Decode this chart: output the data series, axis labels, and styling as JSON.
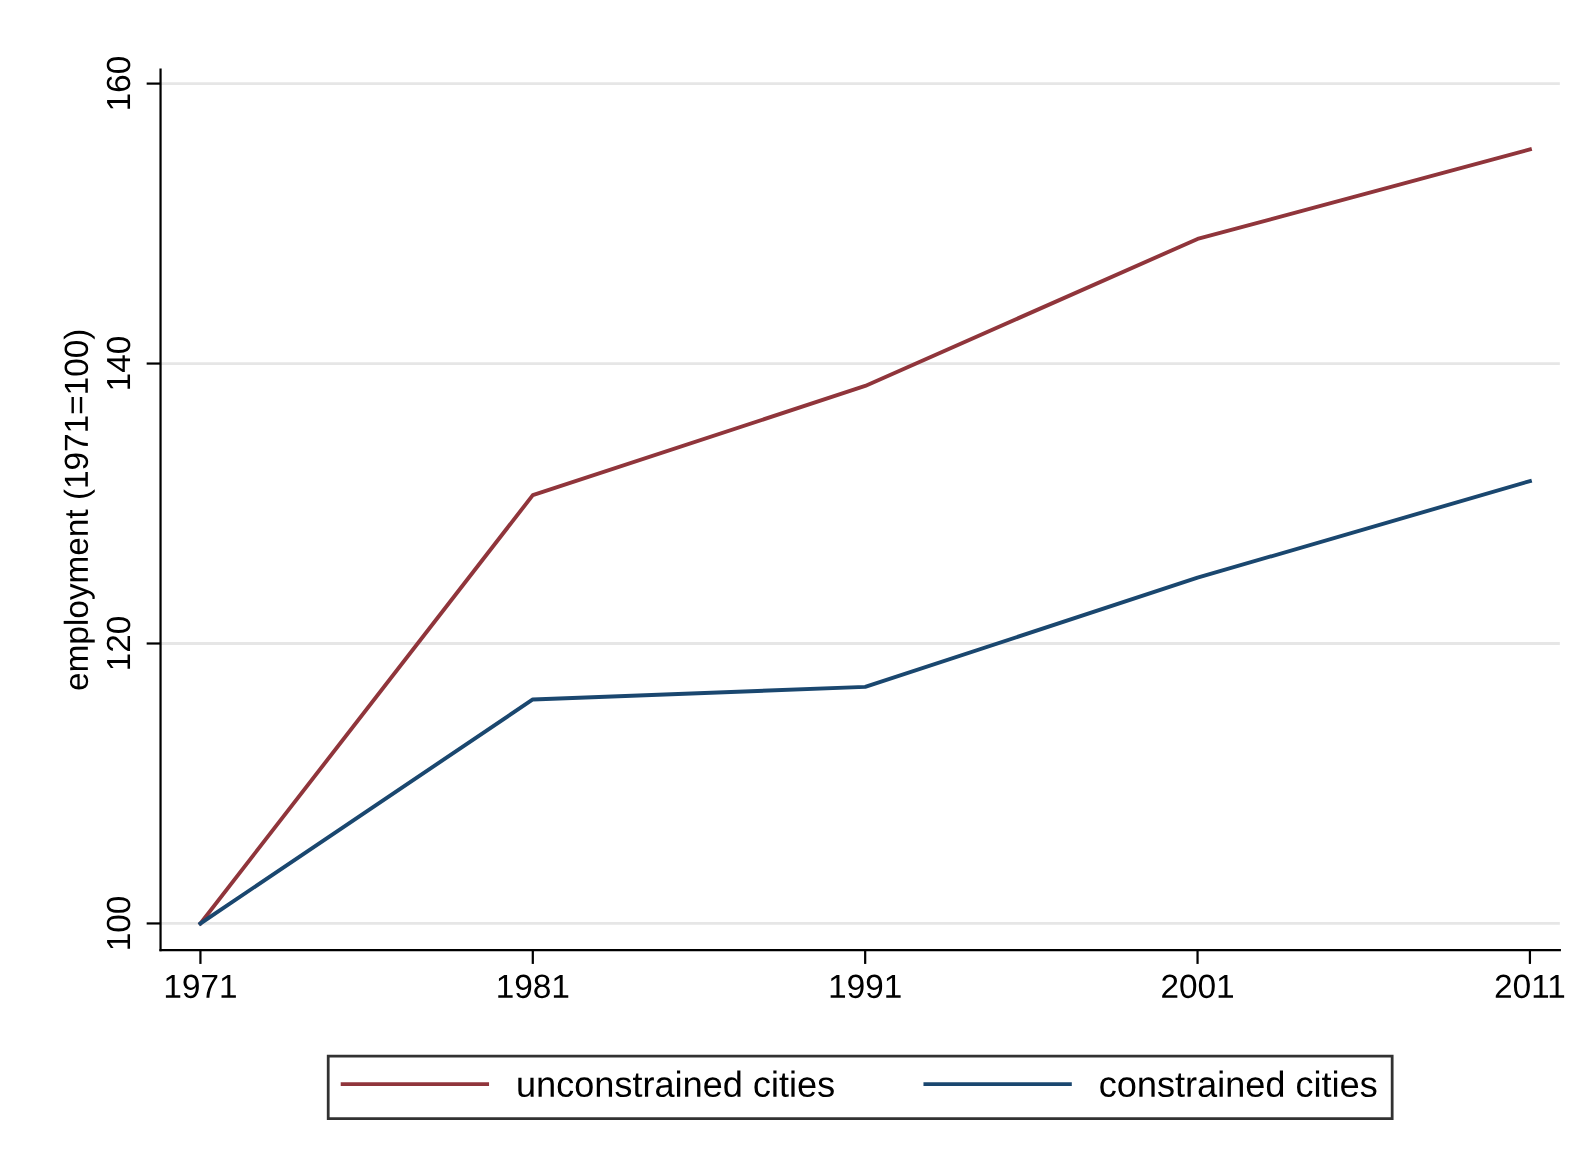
{
  "chart_data": {
    "type": "line",
    "ylabel": "employment (1971=100)",
    "x": [
      1971,
      1981,
      1991,
      2001,
      2011
    ],
    "series": [
      {
        "name": "unconstrained cities",
        "color": "#90353b",
        "values": [
          100,
          130.6,
          138.4,
          148.9,
          155.3
        ]
      },
      {
        "name": "constrained cities",
        "color": "#1a476f",
        "values": [
          100,
          116.0,
          116.9,
          124.7,
          131.6
        ]
      }
    ],
    "xlim": [
      1969.8,
      2011.9
    ],
    "xticks": [
      1971,
      1981,
      1991,
      2001,
      2011
    ],
    "ylim": [
      98.1,
      161
    ],
    "yticks": [
      100,
      120,
      140,
      160
    ],
    "grid": "y",
    "legend": "bottom",
    "marker": "none",
    "line_style": "solid"
  }
}
